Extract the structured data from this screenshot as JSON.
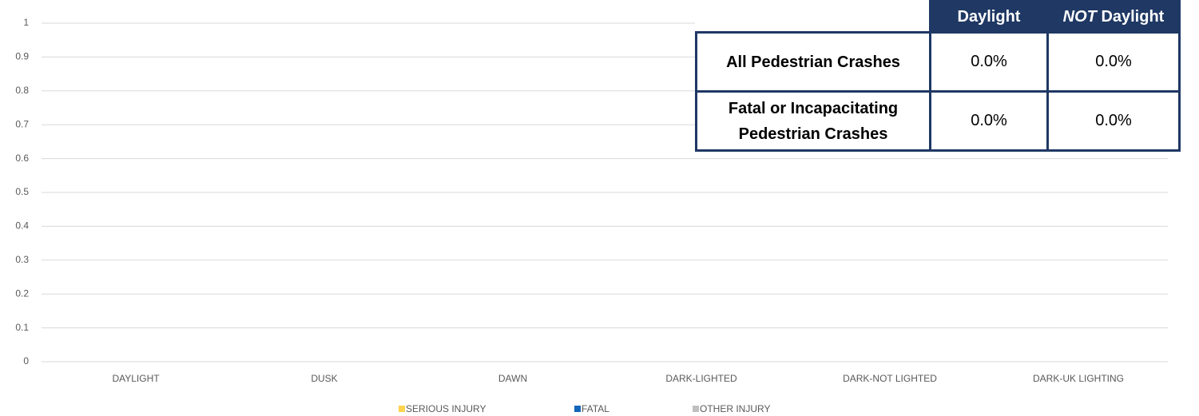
{
  "chart_data": {
    "type": "stacked_bar",
    "categories": [
      "DAYLIGHT",
      "DUSK",
      "DAWN",
      "DARK-LIGHTED",
      "DARK-NOT LIGHTED",
      "DARK-UK LIGHTING"
    ],
    "series": [
      {
        "name": "SERIOUS INJURY",
        "color": "#ffd34e",
        "values": [
          0,
          0,
          0,
          0,
          0,
          0
        ]
      },
      {
        "name": "FATAL",
        "color": "#1565b8",
        "values": [
          0,
          0,
          0,
          0,
          0,
          0
        ]
      },
      {
        "name": "OTHER INJURY",
        "color": "#bfbfbf",
        "values": [
          0,
          0,
          0,
          0,
          0,
          0
        ]
      }
    ],
    "ylim": [
      0,
      1
    ],
    "yticks": [
      0,
      0.1,
      0.2,
      0.3,
      0.4,
      0.5,
      0.6,
      0.7,
      0.8,
      0.9,
      1
    ],
    "grid": true,
    "legend": "bottom"
  },
  "table": {
    "header": [
      "Daylight",
      [
        "NOT",
        "Daylight"
      ]
    ],
    "rows": [
      [
        "All Pedestrian Crashes",
        "0.0%",
        "0.0%"
      ],
      [
        "Fatal or Incapacitating Pedestrian Crashes",
        "0.0%",
        "0.0%"
      ]
    ]
  }
}
